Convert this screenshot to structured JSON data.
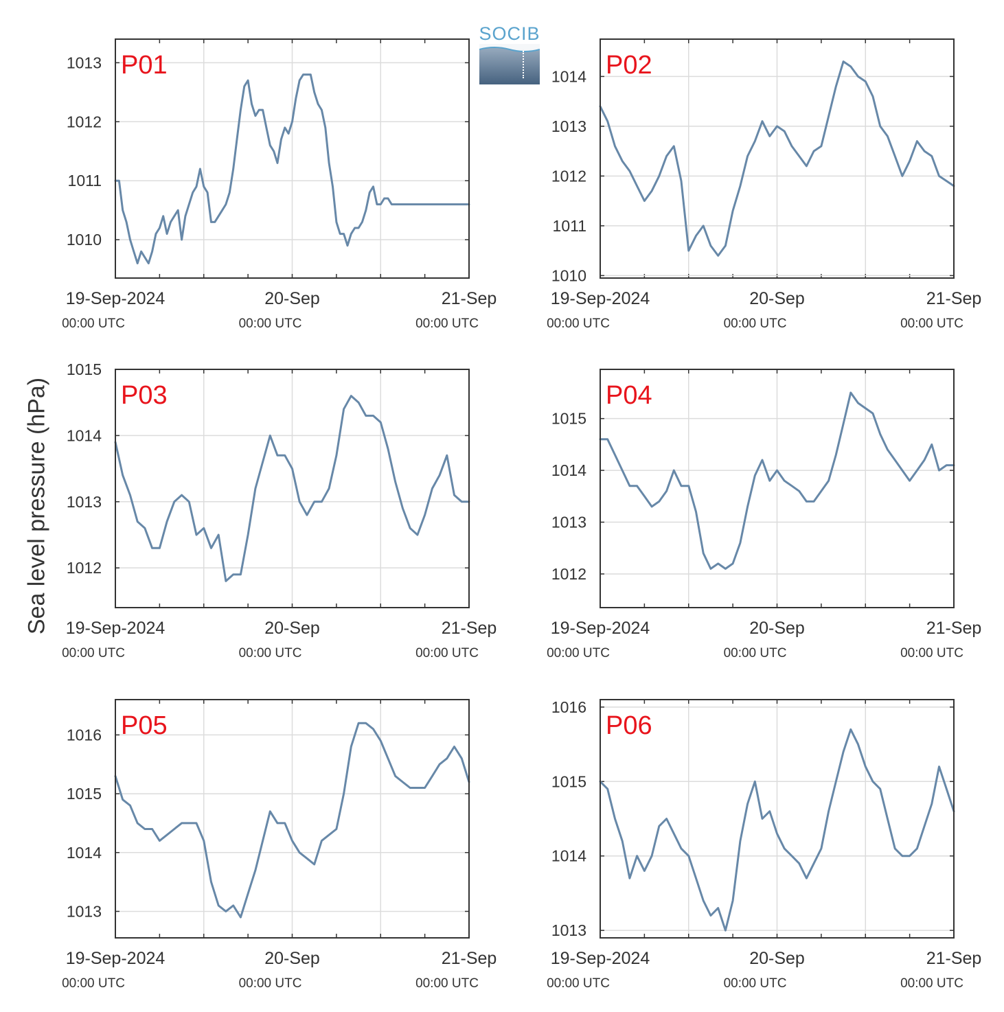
{
  "figure": {
    "ylabel": "Sea level pressure (hPa)",
    "logo_text": "SOCIB",
    "line_color": "#6788a8",
    "station_label_color": "#e8141c",
    "x_tick_labels": [
      "19-Sep-2024",
      "20-Sep",
      "21-Sep"
    ],
    "x_tick_sublabels": [
      "00:00 UTC",
      "00:00 UTC",
      "00:00 UTC"
    ]
  },
  "chart_data": [
    {
      "type": "line",
      "station": "P01",
      "xlim": [
        0,
        48
      ],
      "ylim": [
        1009.35,
        1013.4
      ],
      "yticks": [
        1010,
        1011,
        1012,
        1013
      ],
      "x": [
        0,
        0.5,
        1,
        1.5,
        2,
        2.5,
        3,
        3.5,
        4,
        4.5,
        5,
        5.5,
        6,
        6.5,
        7,
        7.5,
        8,
        8.5,
        9,
        9.5,
        10,
        10.5,
        11,
        11.5,
        12,
        12.5,
        13,
        13.5,
        14,
        14.5,
        15,
        15.5,
        16,
        16.5,
        17,
        17.5,
        18,
        18.5,
        19,
        19.5,
        20,
        20.5,
        21,
        21.5,
        22,
        22.5,
        23,
        23.5,
        24,
        24.5,
        25,
        25.5,
        26,
        26.5,
        27,
        27.5,
        28,
        28.5,
        29,
        29.5,
        30,
        30.5,
        31,
        31.5,
        32,
        32.5,
        33,
        33.5,
        34,
        34.5,
        35,
        35.5,
        36,
        36.5,
        37,
        37.5,
        38,
        38.5,
        39,
        39.5,
        40,
        40.5,
        41,
        41.5,
        42,
        42.5,
        43,
        43.5,
        44,
        44.5,
        45,
        45.5,
        46,
        46.5,
        47,
        47.5,
        48
      ],
      "values": [
        1011.0,
        1011.0,
        1010.5,
        1010.3,
        1010.0,
        1009.8,
        1009.6,
        1009.8,
        1009.7,
        1009.6,
        1009.8,
        1010.1,
        1010.2,
        1010.4,
        1010.1,
        1010.3,
        1010.4,
        1010.5,
        1010.0,
        1010.4,
        1010.6,
        1010.8,
        1010.9,
        1011.2,
        1010.9,
        1010.8,
        1010.3,
        1010.3,
        1010.4,
        1010.5,
        1010.6,
        1010.8,
        1011.2,
        1011.7,
        1012.2,
        1012.6,
        1012.7,
        1012.3,
        1012.1,
        1012.2,
        1012.2,
        1011.9,
        1011.6,
        1011.5,
        1011.3,
        1011.7,
        1011.9,
        1011.8,
        1012.0,
        1012.4,
        1012.7,
        1012.8,
        1012.8,
        1012.8,
        1012.5,
        1012.3,
        1012.2,
        1011.9,
        1011.3,
        1010.9,
        1010.3,
        1010.1,
        1010.1,
        1009.9,
        1010.1,
        1010.2,
        1010.2,
        1010.3,
        1010.5,
        1010.8,
        1010.9,
        1010.6,
        1010.6,
        1010.7,
        1010.7,
        1010.6,
        1010.6,
        1010.6,
        1010.6,
        1010.6,
        1010.6,
        1010.6,
        1010.6,
        1010.6,
        1010.6,
        1010.6,
        1010.6,
        1010.6,
        1010.6,
        1010.6,
        1010.6,
        1010.6,
        1010.6,
        1010.6,
        1010.6,
        1010.6,
        1010.6
      ]
    },
    {
      "type": "line",
      "station": "P02",
      "xlim": [
        0,
        48
      ],
      "ylim": [
        1009.95,
        1014.75
      ],
      "yticks": [
        1010,
        1011,
        1012,
        1013,
        1014
      ],
      "x": [
        0,
        1,
        2,
        3,
        4,
        5,
        6,
        7,
        8,
        9,
        10,
        11,
        12,
        13,
        14,
        15,
        16,
        17,
        18,
        19,
        20,
        21,
        22,
        23,
        24,
        25,
        26,
        27,
        28,
        29,
        30,
        31,
        32,
        33,
        34,
        35,
        36,
        37,
        38,
        39,
        40,
        41,
        42,
        43,
        44,
        45,
        46,
        47,
        48
      ],
      "values": [
        1013.4,
        1013.1,
        1012.6,
        1012.3,
        1012.1,
        1011.8,
        1011.5,
        1011.7,
        1012.0,
        1012.4,
        1012.6,
        1011.9,
        1010.5,
        1010.8,
        1011.0,
        1010.6,
        1010.4,
        1010.6,
        1011.3,
        1011.8,
        1012.4,
        1012.7,
        1013.1,
        1012.8,
        1013.0,
        1012.9,
        1012.6,
        1012.4,
        1012.2,
        1012.5,
        1012.6,
        1013.2,
        1013.8,
        1014.3,
        1014.2,
        1014.0,
        1013.9,
        1013.6,
        1013.0,
        1012.8,
        1012.4,
        1012.0,
        1012.3,
        1012.7,
        1012.5,
        1012.4,
        1012.0,
        1011.9,
        1011.8
      ]
    },
    {
      "type": "line",
      "station": "P03",
      "xlim": [
        0,
        48
      ],
      "ylim": [
        1011.4,
        1015.0
      ],
      "yticks": [
        1012,
        1013,
        1014,
        1015
      ],
      "x": [
        0,
        1,
        2,
        3,
        4,
        5,
        6,
        7,
        8,
        9,
        10,
        11,
        12,
        13,
        14,
        15,
        16,
        17,
        18,
        19,
        20,
        21,
        22,
        23,
        24,
        25,
        26,
        27,
        28,
        29,
        30,
        31,
        32,
        33,
        34,
        35,
        36,
        37,
        38,
        39,
        40,
        41,
        42,
        43,
        44,
        45,
        46,
        47,
        48
      ],
      "values": [
        1013.9,
        1013.4,
        1013.1,
        1012.7,
        1012.6,
        1012.3,
        1012.3,
        1012.7,
        1013.0,
        1013.1,
        1013.0,
        1012.5,
        1012.6,
        1012.3,
        1012.5,
        1011.8,
        1011.9,
        1011.9,
        1012.5,
        1013.2,
        1013.6,
        1014.0,
        1013.7,
        1013.7,
        1013.5,
        1013.0,
        1012.8,
        1013.0,
        1013.0,
        1013.2,
        1013.7,
        1014.4,
        1014.6,
        1014.5,
        1014.3,
        1014.3,
        1014.2,
        1013.8,
        1013.3,
        1012.9,
        1012.6,
        1012.5,
        1012.8,
        1013.2,
        1013.4,
        1013.7,
        1013.1,
        1013.0,
        1013.0
      ]
    },
    {
      "type": "line",
      "station": "P04",
      "xlim": [
        0,
        48
      ],
      "ylim": [
        1011.35,
        1015.95
      ],
      "yticks": [
        1012,
        1013,
        1014,
        1015
      ],
      "x": [
        0,
        1,
        2,
        3,
        4,
        5,
        6,
        7,
        8,
        9,
        10,
        11,
        12,
        13,
        14,
        15,
        16,
        17,
        18,
        19,
        20,
        21,
        22,
        23,
        24,
        25,
        26,
        27,
        28,
        29,
        30,
        31,
        32,
        33,
        34,
        35,
        36,
        37,
        38,
        39,
        40,
        41,
        42,
        43,
        44,
        45,
        46,
        47,
        48
      ],
      "values": [
        1014.6,
        1014.6,
        1014.3,
        1014.0,
        1013.7,
        1013.7,
        1013.5,
        1013.3,
        1013.4,
        1013.6,
        1014.0,
        1013.7,
        1013.7,
        1013.2,
        1012.4,
        1012.1,
        1012.2,
        1012.1,
        1012.2,
        1012.6,
        1013.3,
        1013.9,
        1014.2,
        1013.8,
        1014.0,
        1013.8,
        1013.7,
        1013.6,
        1013.4,
        1013.4,
        1013.6,
        1013.8,
        1014.3,
        1014.9,
        1015.5,
        1015.3,
        1015.2,
        1015.1,
        1014.7,
        1014.4,
        1014.2,
        1014.0,
        1013.8,
        1014.0,
        1014.2,
        1014.5,
        1014.0,
        1014.1,
        1014.1
      ]
    },
    {
      "type": "line",
      "station": "P05",
      "xlim": [
        0,
        48
      ],
      "ylim": [
        1012.55,
        1016.6
      ],
      "yticks": [
        1013,
        1014,
        1015,
        1016
      ],
      "x": [
        0,
        1,
        2,
        3,
        4,
        5,
        6,
        7,
        8,
        9,
        10,
        11,
        12,
        13,
        14,
        15,
        16,
        17,
        18,
        19,
        20,
        21,
        22,
        23,
        24,
        25,
        26,
        27,
        28,
        29,
        30,
        31,
        32,
        33,
        34,
        35,
        36,
        37,
        38,
        39,
        40,
        41,
        42,
        43,
        44,
        45,
        46,
        47,
        48
      ],
      "values": [
        1015.3,
        1014.9,
        1014.8,
        1014.5,
        1014.4,
        1014.4,
        1014.2,
        1014.3,
        1014.4,
        1014.5,
        1014.5,
        1014.5,
        1014.2,
        1013.5,
        1013.1,
        1013.0,
        1013.1,
        1012.9,
        1013.3,
        1013.7,
        1014.2,
        1014.7,
        1014.5,
        1014.5,
        1014.2,
        1014.0,
        1013.9,
        1013.8,
        1014.2,
        1014.3,
        1014.4,
        1015.0,
        1015.8,
        1016.2,
        1016.2,
        1016.1,
        1015.9,
        1015.6,
        1015.3,
        1015.2,
        1015.1,
        1015.1,
        1015.1,
        1015.3,
        1015.5,
        1015.6,
        1015.8,
        1015.6,
        1015.2
      ]
    },
    {
      "type": "line",
      "station": "P06",
      "xlim": [
        0,
        48
      ],
      "ylim": [
        1012.9,
        1016.1
      ],
      "yticks": [
        1013,
        1014,
        1015,
        1016
      ],
      "x": [
        0,
        1,
        2,
        3,
        4,
        5,
        6,
        7,
        8,
        9,
        10,
        11,
        12,
        13,
        14,
        15,
        16,
        17,
        18,
        19,
        20,
        21,
        22,
        23,
        24,
        25,
        26,
        27,
        28,
        29,
        30,
        31,
        32,
        33,
        34,
        35,
        36,
        37,
        38,
        39,
        40,
        41,
        42,
        43,
        44,
        45,
        46,
        47,
        48
      ],
      "values": [
        1015.0,
        1014.9,
        1014.5,
        1014.2,
        1013.7,
        1014.0,
        1013.8,
        1014.0,
        1014.4,
        1014.5,
        1014.3,
        1014.1,
        1014.0,
        1013.7,
        1013.4,
        1013.2,
        1013.3,
        1013.0,
        1013.4,
        1014.2,
        1014.7,
        1015.0,
        1014.5,
        1014.6,
        1014.3,
        1014.1,
        1014.0,
        1013.9,
        1013.7,
        1013.9,
        1014.1,
        1014.6,
        1015.0,
        1015.4,
        1015.7,
        1015.5,
        1015.2,
        1015.0,
        1014.9,
        1014.5,
        1014.1,
        1014.0,
        1014.0,
        1014.1,
        1014.4,
        1014.7,
        1015.2,
        1014.9,
        1014.6
      ]
    }
  ]
}
